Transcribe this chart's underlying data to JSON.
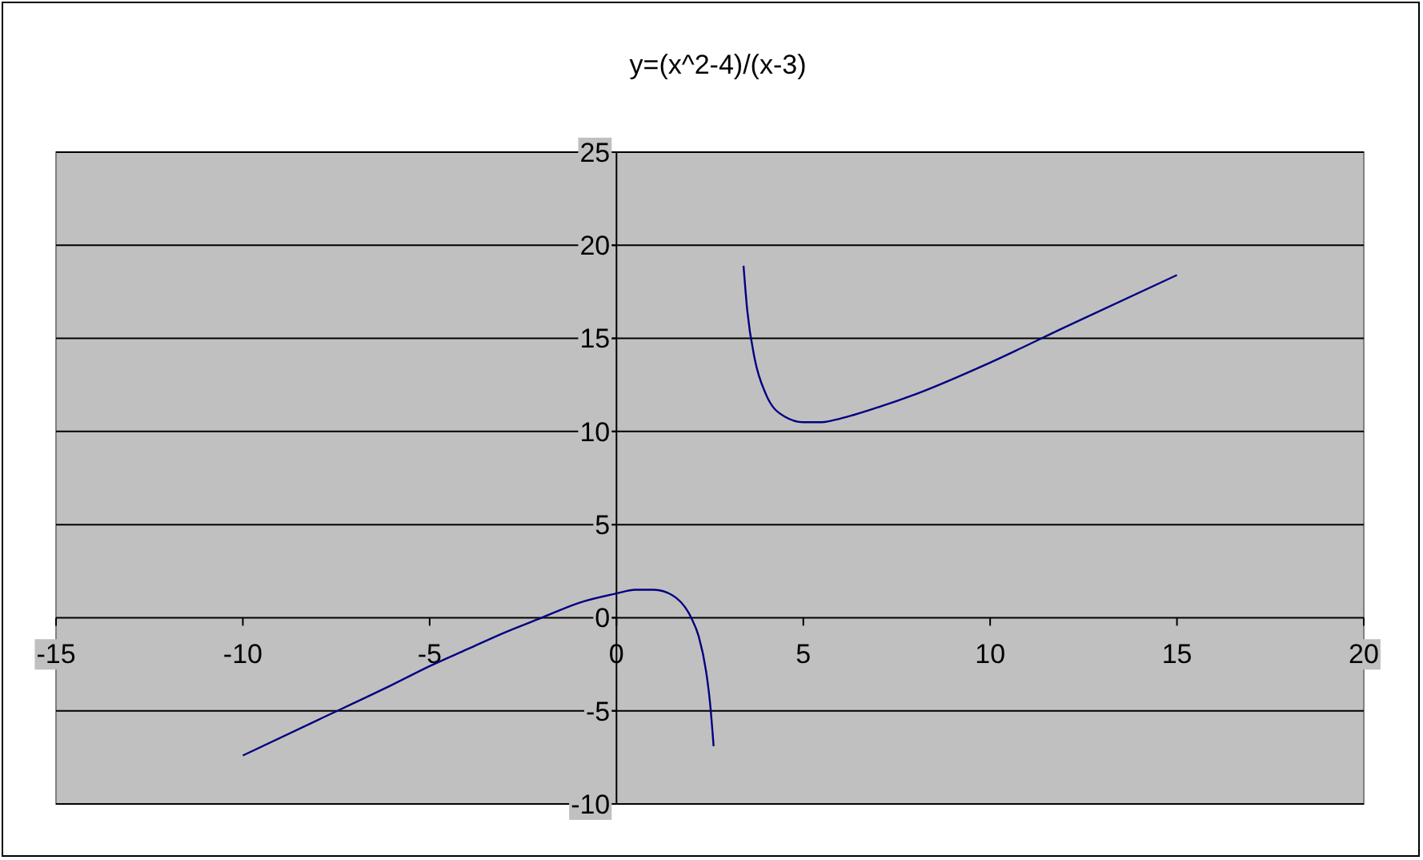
{
  "chart_data": {
    "type": "line",
    "title": "y=(x^2-4)/(x-3)",
    "series": [
      {
        "color": "#000080",
        "x": [
          -10,
          -8,
          -6,
          -5,
          -4,
          -3,
          -2,
          -1,
          0,
          0.5,
          1,
          1.5,
          2,
          2.2,
          2.4,
          2.5,
          2.6
        ],
        "values": [
          -7.4,
          -5.5,
          -3.6,
          -2.6,
          -1.7,
          -0.8,
          0,
          0.8,
          1.3,
          1.5,
          1.5,
          1.2,
          0,
          -1,
          -2.9,
          -4.5,
          -6.9
        ]
      },
      {
        "color": "#000080",
        "x": [
          3.4,
          3.5,
          3.7,
          4,
          4.5,
          5,
          5.5,
          6,
          7,
          8,
          10,
          12,
          15
        ],
        "values": [
          18.9,
          16.5,
          13.9,
          12,
          10.8,
          10.5,
          10.5,
          10.7,
          11.3,
          12,
          13.7,
          15.6,
          18.4
        ]
      }
    ],
    "xlim": [
      -15,
      20
    ],
    "xticks": [
      -15,
      -10,
      -5,
      0,
      5,
      10,
      15,
      20
    ],
    "ylim": [
      -10,
      25
    ],
    "yticks": [
      -10,
      -5,
      0,
      5,
      10,
      15,
      20,
      25
    ],
    "grid": "y",
    "marker": "none",
    "line_style": "solid"
  }
}
